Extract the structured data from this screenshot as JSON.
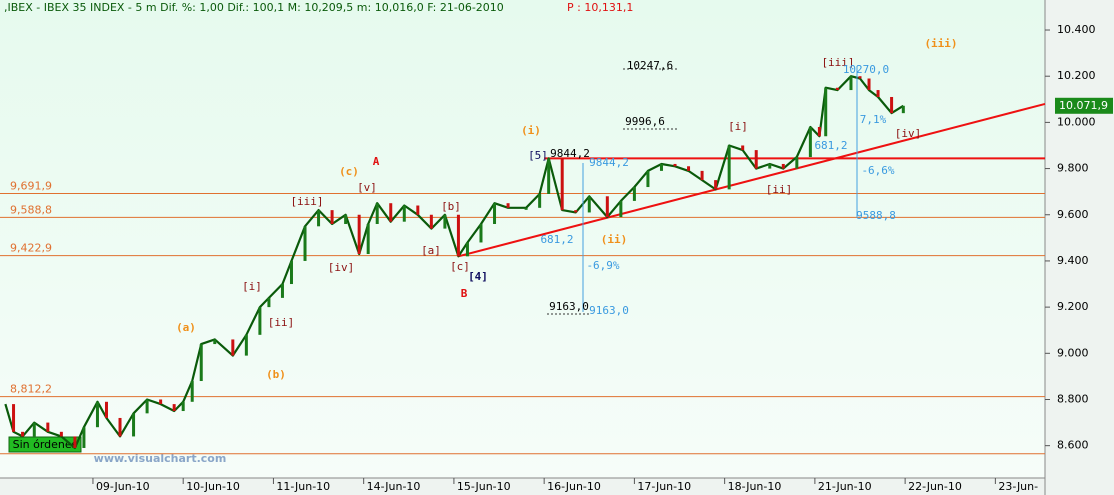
{
  "chart_data": {
    "type": "line",
    "header": ",IBEX - IBEX 35 INDEX -  5 m Dif. %: 1,00 Dif.: 100,1 M: 10,209,5 m: 10,016,0 F: 21-06-2010",
    "header_price": "P : 10,131,1",
    "categories": [
      "09-Jun-10",
      "10-Jun-10",
      "11-Jun-10",
      "14-Jun-10",
      "15-Jun-10",
      "16-Jun-10",
      "17-Jun-10",
      "18-Jun-10",
      "21-Jun-10",
      "22-Jun-10",
      "23-Jun-"
    ],
    "xlim": [
      -1.03,
      10.55
    ],
    "x": [
      -0.97,
      -0.88,
      -0.78,
      -0.65,
      -0.5,
      -0.35,
      -0.2,
      -0.1,
      0.05,
      0.15,
      0.3,
      0.45,
      0.6,
      0.75,
      0.9,
      1.0,
      1.1,
      1.2,
      1.35,
      1.55,
      1.7,
      1.85,
      1.95,
      2.1,
      2.2,
      2.35,
      2.5,
      2.65,
      2.8,
      2.95,
      3.05,
      3.15,
      3.3,
      3.45,
      3.6,
      3.75,
      3.9,
      4.05,
      4.15,
      4.3,
      4.45,
      4.6,
      4.8,
      4.95,
      5.05,
      5.2,
      5.35,
      5.5,
      5.7,
      5.85,
      6.0,
      6.15,
      6.3,
      6.45,
      6.6,
      6.75,
      6.9,
      7.05,
      7.2,
      7.35,
      7.5,
      7.65,
      7.8,
      7.95,
      8.05,
      8.12,
      8.25,
      8.4,
      8.5,
      8.6,
      8.7,
      8.85,
      8.98
    ],
    "values": [
      8780,
      8660,
      8640,
      8700,
      8660,
      8640,
      8590,
      8680,
      8790,
      8720,
      8640,
      8740,
      8800,
      8780,
      8750,
      8790,
      8880,
      9040,
      9060,
      8990,
      9080,
      9200,
      9240,
      9300,
      9400,
      9550,
      9620,
      9560,
      9600,
      9430,
      9560,
      9650,
      9570,
      9640,
      9600,
      9540,
      9600,
      9420,
      9480,
      9560,
      9650,
      9630,
      9630,
      9690,
      9844,
      9620,
      9610,
      9680,
      9590,
      9660,
      9720,
      9790,
      9820,
      9810,
      9790,
      9750,
      9710,
      9900,
      9880,
      9800,
      9820,
      9800,
      9850,
      9980,
      9940,
      10150,
      10140,
      10200,
      10190,
      10140,
      10110,
      10040,
      10071.9
    ],
    "color": "#0a5a0a",
    "ylim": [
      8460,
      10530
    ],
    "yticks": [
      {
        "value": 10400,
        "label": "10.400"
      },
      {
        "value": 10200,
        "label": "10.200"
      },
      {
        "value": 10000,
        "label": "10.000"
      },
      {
        "value": 9800,
        "label": "9.800"
      },
      {
        "value": 9600,
        "label": "9.600"
      },
      {
        "value": 9400,
        "label": "9.400"
      },
      {
        "value": 9200,
        "label": "9.200"
      },
      {
        "value": 9000,
        "label": "9.000"
      },
      {
        "value": 8800,
        "label": "8.800"
      },
      {
        "value": 8600,
        "label": "8.600"
      }
    ],
    "current_price": {
      "value": 10071.9,
      "label": "10.071,9"
    },
    "levels": [
      {
        "value": 9691.9,
        "label": "9,691,9"
      },
      {
        "value": 9588.8,
        "label": "9,588,8"
      },
      {
        "value": 9422.9,
        "label": "9,422,9"
      },
      {
        "value": 8812.2,
        "label": "8,812,2"
      },
      {
        "value": 8565,
        "label": null
      }
    ],
    "level_color": "#e07030",
    "trendlines": [
      {
        "x": [
          4.05,
          10.55
        ],
        "y": [
          9420,
          10080
        ]
      },
      {
        "x": [
          5.0,
          10.55
        ],
        "y": [
          9844,
          9844
        ]
      }
    ],
    "trend_color": "#ee1111",
    "annotations": [
      "(iii)",
      "[iii]",
      "10270,0",
      "10247,6",
      "9996,6",
      "[i]",
      "7,1%",
      "[iv]",
      "681,2",
      "(i)",
      "9844,2",
      "[5]",
      "9844,2",
      "A",
      "(c)",
      "[v]",
      "-6,6%",
      "[ii]",
      "[iii]",
      "[b]",
      "9588,8",
      "(ii)",
      "681,2",
      "[a]",
      "[iv]",
      "-6,9%",
      "[c]",
      "[4]",
      "B",
      "[i]",
      "[ii]",
      "9163,0",
      "9163,0",
      "(a)",
      "(b)"
    ],
    "status": "Sin órdenes",
    "watermark": "www.visualchart.com"
  }
}
